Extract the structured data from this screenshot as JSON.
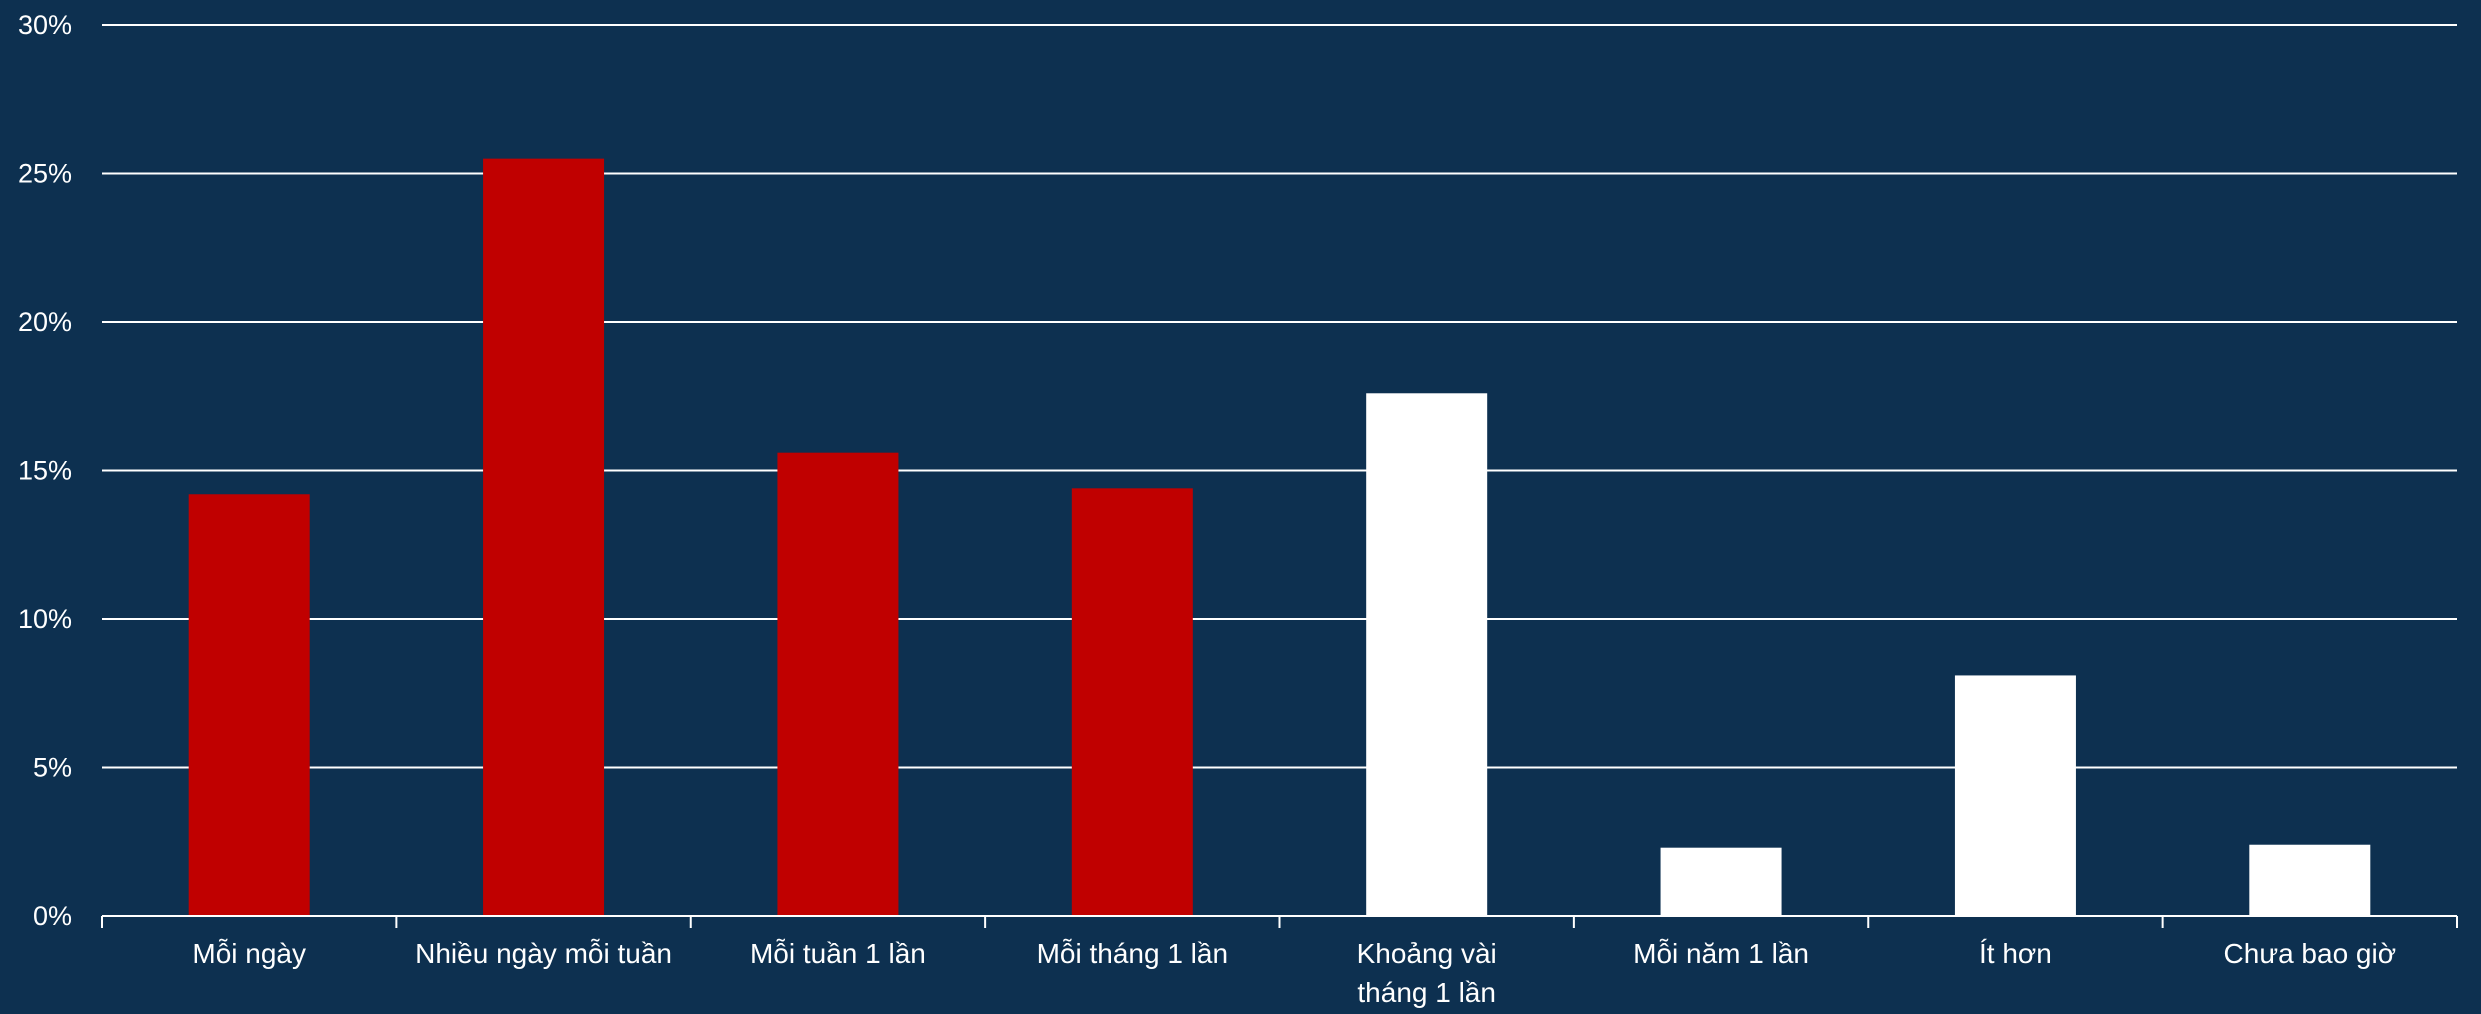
{
  "colors": {
    "background": "#0d3050",
    "bar_highlight": "#c00000",
    "bar_default": "#ffffff",
    "gridline": "#ffffff",
    "text": "#ffffff"
  },
  "chart_data": {
    "type": "bar",
    "title": "",
    "xlabel": "",
    "ylabel": "",
    "ylim": [
      0,
      0.3
    ],
    "y_ticks": [
      0,
      0.05,
      0.1,
      0.15,
      0.2,
      0.25,
      0.3
    ],
    "y_tick_labels": [
      "0%",
      "5%",
      "10%",
      "15%",
      "20%",
      "25%",
      "30%"
    ],
    "grid": true,
    "legend": "none",
    "categories": [
      "Mỗi ngày",
      "Nhiều ngày mỗi tuần",
      "Mỗi tuần 1 lần",
      "Mỗi tháng 1 lần",
      "Khoảng vài tháng 1 lần",
      "Mỗi năm 1 lần",
      "Ít hơn",
      "Chưa bao giờ"
    ],
    "category_label_lines": [
      [
        "Mỗi ngày"
      ],
      [
        "Nhiều ngày mỗi tuần"
      ],
      [
        "Mỗi tuần 1 lần"
      ],
      [
        "Mỗi tháng 1 lần"
      ],
      [
        "Khoảng vài",
        "tháng 1 lần"
      ],
      [
        "Mỗi năm 1 lần"
      ],
      [
        "Ít hơn"
      ],
      [
        "Chưa bao giờ"
      ]
    ],
    "values": [
      0.142,
      0.255,
      0.156,
      0.144,
      0.176,
      0.023,
      0.081,
      0.024
    ],
    "bar_colors": [
      "#c00000",
      "#c00000",
      "#c00000",
      "#c00000",
      "#ffffff",
      "#ffffff",
      "#ffffff",
      "#ffffff"
    ]
  }
}
